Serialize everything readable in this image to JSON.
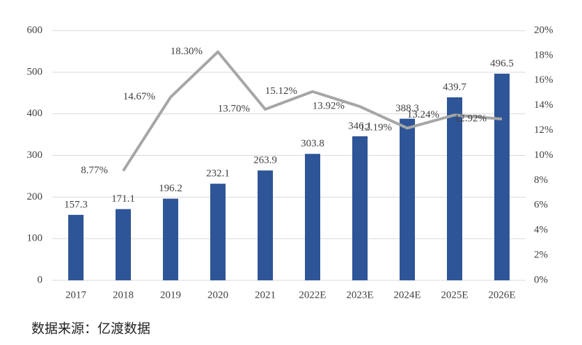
{
  "chart_data": {
    "type": "bar_line",
    "categories": [
      "2017",
      "2018",
      "2019",
      "2020",
      "2021",
      "2022E",
      "2023E",
      "2024E",
      "2025E",
      "2026E"
    ],
    "series": [
      {
        "type": "bar",
        "color": "#2e5597",
        "values": [
          157.3,
          171.1,
          196.2,
          232.1,
          263.9,
          303.8,
          346.1,
          388.3,
          439.7,
          496.5
        ]
      },
      {
        "type": "line",
        "axis": "y2",
        "color": "#a6a6a6",
        "values": [
          null,
          8.77,
          14.67,
          18.3,
          13.7,
          15.12,
          13.92,
          12.19,
          13.24,
          12.92
        ],
        "value_labels": [
          null,
          "8.77%",
          "14.67%",
          "18.30%",
          "13.70%",
          "15.12%",
          "13.92%",
          "12.19%",
          "13.24%",
          "12.92%"
        ]
      }
    ],
    "ylim": [
      0,
      600
    ],
    "yticks": [
      0,
      100,
      200,
      300,
      400,
      500,
      600
    ],
    "y2lim": [
      0,
      20
    ],
    "y2ticks": [
      {
        "value": 0,
        "label": "0%"
      },
      {
        "value": 2,
        "label": "2%"
      },
      {
        "value": 4,
        "label": "4%"
      },
      {
        "value": 6,
        "label": "6%"
      },
      {
        "value": 8,
        "label": "8%"
      },
      {
        "value": 10,
        "label": "10%"
      },
      {
        "value": 12,
        "label": "12%"
      },
      {
        "value": 14,
        "label": "14%"
      },
      {
        "value": 16,
        "label": "16%"
      },
      {
        "value": 18,
        "label": "18%"
      },
      {
        "value": 20,
        "label": "20%"
      }
    ],
    "grid": true,
    "source": "数据来源：亿渡数据"
  }
}
